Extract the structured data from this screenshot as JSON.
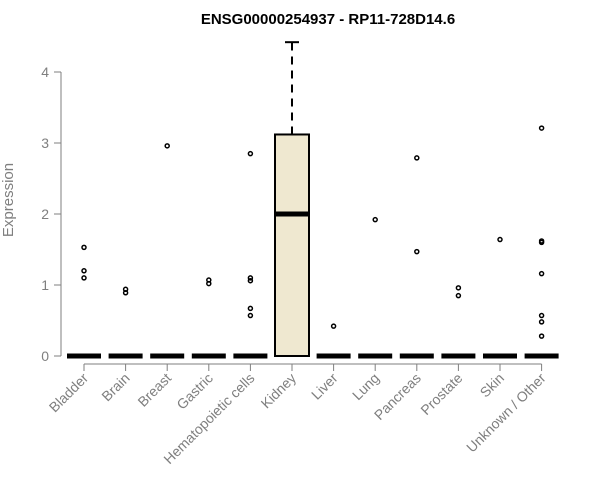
{
  "chart_data": {
    "type": "boxplot",
    "title": "ENSG00000254937 - RP11-728D14.6",
    "ylabel": "Expression",
    "xlabel": "",
    "ylim": [
      0,
      4.4
    ],
    "yticks": [
      0,
      1,
      2,
      3,
      4
    ],
    "grid": false,
    "box_fill": "#efe8d0",
    "categories": [
      "Bladder",
      "Brain",
      "Breast",
      "Gastric",
      "Hematopoietic cells",
      "Kidney",
      "Liver",
      "Lung",
      "Pancreas",
      "Prostate",
      "Skin",
      "Unknown / Other"
    ],
    "boxes": [
      {
        "q1": 0,
        "median": 0,
        "q3": 0,
        "whisker_low": 0,
        "whisker_high": 0,
        "outliers": [
          1.1,
          1.2,
          1.53
        ]
      },
      {
        "q1": 0,
        "median": 0,
        "q3": 0,
        "whisker_low": 0,
        "whisker_high": 0,
        "outliers": [
          0.89,
          0.94
        ]
      },
      {
        "q1": 0,
        "median": 0,
        "q3": 0,
        "whisker_low": 0,
        "whisker_high": 0,
        "outliers": [
          2.96
        ]
      },
      {
        "q1": 0,
        "median": 0,
        "q3": 0,
        "whisker_low": 0,
        "whisker_high": 0,
        "outliers": [
          1.02,
          1.07
        ]
      },
      {
        "q1": 0,
        "median": 0,
        "q3": 0,
        "whisker_low": 0,
        "whisker_high": 0,
        "outliers": [
          0.57,
          0.67,
          1.06,
          1.1,
          2.85
        ]
      },
      {
        "q1": 0,
        "median": 2.0,
        "q3": 3.12,
        "whisker_low": 0,
        "whisker_high": 4.42,
        "outliers": []
      },
      {
        "q1": 0,
        "median": 0,
        "q3": 0,
        "whisker_low": 0,
        "whisker_high": 0,
        "outliers": [
          0.42
        ]
      },
      {
        "q1": 0,
        "median": 0,
        "q3": 0,
        "whisker_low": 0,
        "whisker_high": 0,
        "outliers": [
          1.92
        ]
      },
      {
        "q1": 0,
        "median": 0,
        "q3": 0,
        "whisker_low": 0,
        "whisker_high": 0,
        "outliers": [
          1.47,
          2.79
        ]
      },
      {
        "q1": 0,
        "median": 0,
        "q3": 0,
        "whisker_low": 0,
        "whisker_high": 0,
        "outliers": [
          0.85,
          0.96
        ]
      },
      {
        "q1": 0,
        "median": 0,
        "q3": 0,
        "whisker_low": 0,
        "whisker_high": 0,
        "outliers": [
          1.64
        ]
      },
      {
        "q1": 0,
        "median": 0,
        "q3": 0,
        "whisker_low": 0,
        "whisker_high": 0,
        "outliers": [
          0.28,
          0.48,
          0.57,
          1.16,
          1.6,
          1.62,
          3.21
        ]
      }
    ]
  }
}
